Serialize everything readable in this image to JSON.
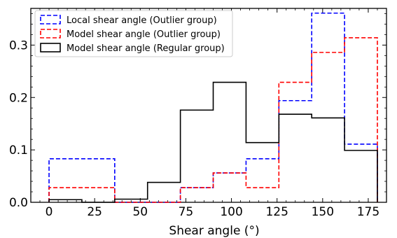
{
  "chart_data": {
    "type": "histogram-step",
    "xlabel": "Shear angle (°)",
    "ylabel": "",
    "xlim": [
      -10,
      185
    ],
    "ylim": [
      0,
      0.37
    ],
    "xticks": [
      0,
      25,
      50,
      75,
      100,
      125,
      150,
      175
    ],
    "xtick_labels": [
      "0",
      "25",
      "50",
      "75",
      "100",
      "125",
      "150",
      "175"
    ],
    "yticks": [
      0.0,
      0.1,
      0.2,
      0.3
    ],
    "ytick_labels": [
      "0.0",
      "0.1",
      "0.2",
      "0.3"
    ],
    "bin_edges": [
      0,
      18,
      36,
      54,
      72,
      90,
      108,
      126,
      144,
      162,
      180
    ],
    "legend_position": "top-left",
    "series": [
      {
        "name": "Local shear angle (Outlier group)",
        "color": "#0000ff",
        "style": "dashed",
        "values": [
          0.083,
          0.083,
          0.0,
          0.0,
          0.028,
          0.056,
          0.083,
          0.194,
          0.361,
          0.111
        ]
      },
      {
        "name": "Model shear angle (Outlier group)",
        "color": "#ff0000",
        "style": "dashed",
        "values": [
          0.028,
          0.028,
          0.0,
          0.0,
          0.028,
          0.056,
          0.028,
          0.229,
          0.286,
          0.314
        ]
      },
      {
        "name": "Model shear angle (Regular group)",
        "color": "#000000",
        "style": "solid",
        "values": [
          0.005,
          0.0,
          0.006,
          0.038,
          0.176,
          0.229,
          0.114,
          0.168,
          0.161,
          0.099
        ]
      }
    ]
  }
}
